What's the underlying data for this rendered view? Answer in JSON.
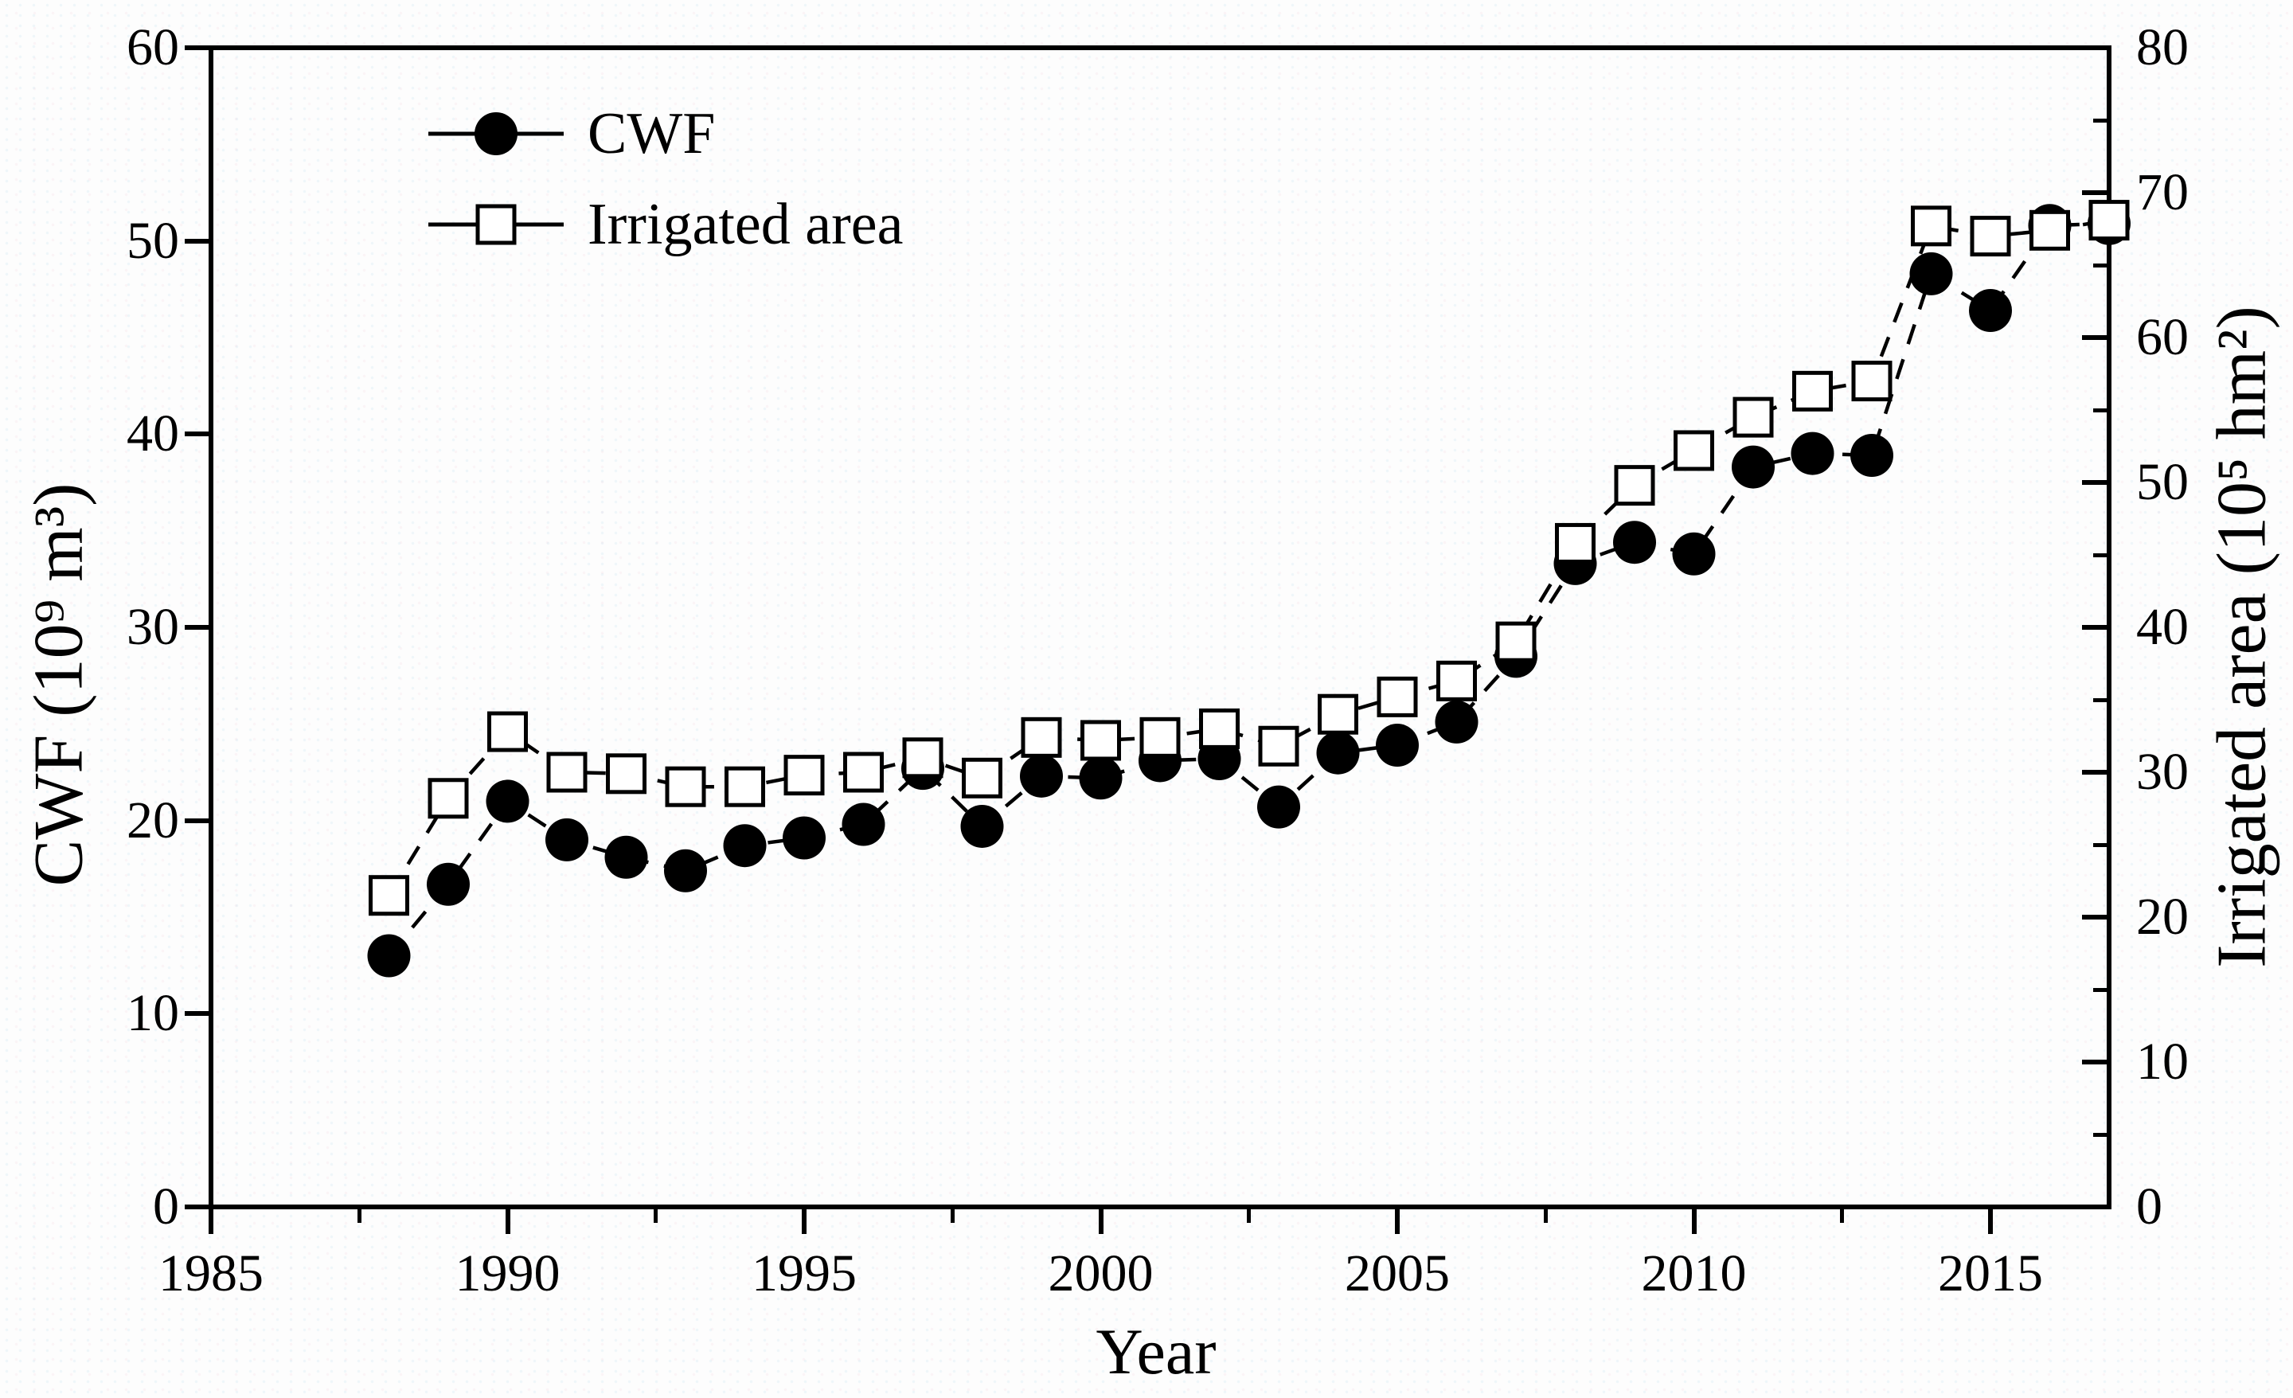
{
  "figure": {
    "background": "#fdfdfd",
    "ink": "#000000"
  },
  "legend": {
    "items": [
      {
        "label": "CWF",
        "marker": "filled-circle"
      },
      {
        "label": "Irrigated area",
        "marker": "open-square"
      }
    ]
  },
  "axes": {
    "x": {
      "title": "Year",
      "min": 1985,
      "max": 2017,
      "major_ticks": [
        1985,
        1990,
        1995,
        2000,
        2005,
        2010,
        2015
      ],
      "minor_ticks": [
        1987.5,
        1992.5,
        1997.5,
        2002.5,
        2007.5,
        2012.5
      ]
    },
    "y_left": {
      "title": "CWF (10⁹ m³)",
      "min": 0,
      "max": 60,
      "major_ticks": [
        0,
        10,
        20,
        30,
        40,
        50,
        60
      ]
    },
    "y_right": {
      "title": "Irrigated area (10⁵ hm²)",
      "min": 0,
      "max": 80,
      "major_ticks": [
        0,
        10,
        20,
        30,
        40,
        50,
        60,
        70,
        80
      ],
      "minor_ticks": [
        5,
        15,
        25,
        35,
        45,
        55,
        65,
        75
      ]
    }
  },
  "chart_data": {
    "type": "line",
    "title": "",
    "xlabel": "Year",
    "ylabel_left": "CWF (10⁹ m³)",
    "ylabel_right": "Irrigated area (10⁵ hm²)",
    "xlim": [
      1985,
      2017
    ],
    "ylim_left": [
      0,
      60
    ],
    "ylim_right": [
      0,
      80
    ],
    "grid": false,
    "legend_position": "upper-left-inside",
    "line_style": "dashed",
    "x": [
      1988,
      1989,
      1990,
      1991,
      1992,
      1993,
      1994,
      1995,
      1996,
      1997,
      1998,
      1999,
      2000,
      2001,
      2002,
      2003,
      2004,
      2005,
      2006,
      2007,
      2008,
      2009,
      2010,
      2011,
      2012,
      2013,
      2014,
      2015,
      2016,
      2017
    ],
    "series": [
      {
        "name": "CWF",
        "axis": "left",
        "marker": "filled-circle",
        "units": "10^9 m^3",
        "values": [
          13.0,
          16.7,
          21.0,
          19.0,
          18.1,
          17.4,
          18.7,
          19.1,
          19.8,
          22.7,
          19.7,
          22.3,
          22.2,
          23.1,
          23.2,
          20.7,
          23.5,
          23.9,
          25.1,
          28.5,
          33.3,
          34.4,
          33.8,
          38.3,
          39.0,
          38.9,
          48.3,
          46.4,
          50.8,
          50.9
        ]
      },
      {
        "name": "Irrigated area",
        "axis": "right",
        "marker": "open-square",
        "units": "10^5 hm^2",
        "values": [
          21.5,
          28.2,
          32.8,
          30.0,
          29.9,
          29.0,
          29.0,
          29.8,
          30.0,
          31.0,
          29.6,
          32.4,
          32.2,
          32.4,
          33.0,
          31.8,
          34.0,
          35.2,
          36.3,
          39.0,
          45.8,
          49.8,
          52.2,
          54.5,
          56.3,
          57.0,
          67.7,
          67.0,
          67.4,
          68.1
        ]
      }
    ]
  }
}
